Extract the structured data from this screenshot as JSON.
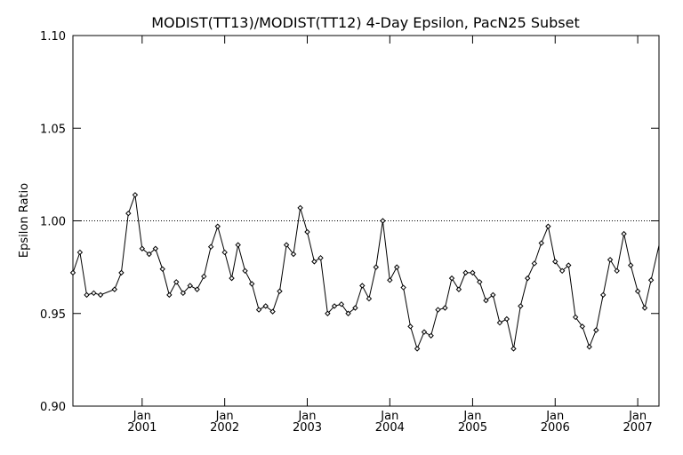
{
  "chart_data": {
    "type": "line",
    "title": "MODIST(TT13)/MODIST(TT12) 4-Day Epsilon, PacN25 Subset",
    "xlabel": "",
    "ylabel": "Epsilon Ratio",
    "ylim": [
      0.9,
      1.1
    ],
    "y_ticks": [
      "0.90",
      "0.95",
      "1.00",
      "1.05",
      "1.10"
    ],
    "xlim": [
      "2000-03-01",
      "2007-04-05"
    ],
    "x_ticks": [
      {
        "date": "2001-01-01",
        "top": "Jan",
        "bottom": "2001"
      },
      {
        "date": "2002-01-01",
        "top": "Jan",
        "bottom": "2002"
      },
      {
        "date": "2003-01-01",
        "top": "Jan",
        "bottom": "2003"
      },
      {
        "date": "2004-01-01",
        "top": "Jan",
        "bottom": "2004"
      },
      {
        "date": "2005-01-01",
        "top": "Jan",
        "bottom": "2005"
      },
      {
        "date": "2006-01-01",
        "top": "Jan",
        "bottom": "2006"
      },
      {
        "date": "2007-01-01",
        "top": "Jan",
        "bottom": "2007"
      }
    ],
    "reference_line": 1.0,
    "grid": false,
    "series": [
      {
        "marker": "diamond",
        "points": [
          [
            "2000-03-01",
            0.972
          ],
          [
            "2000-04-01",
            0.983
          ],
          [
            "2000-05-01",
            0.96
          ],
          [
            "2000-06-01",
            0.961
          ],
          [
            "2000-07-01",
            0.96
          ],
          [
            "2000-09-01",
            0.963
          ],
          [
            "2000-10-01",
            0.972
          ],
          [
            "2000-11-01",
            1.004
          ],
          [
            "2000-12-01",
            1.014
          ],
          [
            "2001-01-01",
            0.985
          ],
          [
            "2001-02-01",
            0.982
          ],
          [
            "2001-03-01",
            0.985
          ],
          [
            "2001-04-01",
            0.974
          ],
          [
            "2001-05-01",
            0.96
          ],
          [
            "2001-06-01",
            0.967
          ],
          [
            "2001-07-01",
            0.961
          ],
          [
            "2001-08-01",
            0.965
          ],
          [
            "2001-09-01",
            0.963
          ],
          [
            "2001-10-01",
            0.97
          ],
          [
            "2001-11-01",
            0.986
          ],
          [
            "2001-12-01",
            0.997
          ],
          [
            "2002-01-01",
            0.983
          ],
          [
            "2002-02-01",
            0.969
          ],
          [
            "2002-03-01",
            0.987
          ],
          [
            "2002-04-01",
            0.973
          ],
          [
            "2002-05-01",
            0.966
          ],
          [
            "2002-06-01",
            0.952
          ],
          [
            "2002-07-01",
            0.954
          ],
          [
            "2002-08-01",
            0.951
          ],
          [
            "2002-09-01",
            0.962
          ],
          [
            "2002-10-01",
            0.987
          ],
          [
            "2002-11-01",
            0.982
          ],
          [
            "2002-12-01",
            1.007
          ],
          [
            "2003-01-01",
            0.994
          ],
          [
            "2003-02-01",
            0.978
          ],
          [
            "2003-03-01",
            0.98
          ],
          [
            "2003-04-01",
            0.95
          ],
          [
            "2003-05-01",
            0.954
          ],
          [
            "2003-06-01",
            0.955
          ],
          [
            "2003-07-01",
            0.95
          ],
          [
            "2003-08-01",
            0.953
          ],
          [
            "2003-09-01",
            0.965
          ],
          [
            "2003-10-01",
            0.958
          ],
          [
            "2003-11-01",
            0.975
          ],
          [
            "2003-12-01",
            1.0
          ],
          [
            "2004-01-01",
            0.968
          ],
          [
            "2004-02-01",
            0.975
          ],
          [
            "2004-03-01",
            0.964
          ],
          [
            "2004-04-01",
            0.943
          ],
          [
            "2004-05-01",
            0.931
          ],
          [
            "2004-06-01",
            0.94
          ],
          [
            "2004-07-01",
            0.938
          ],
          [
            "2004-08-01",
            0.952
          ],
          [
            "2004-09-01",
            0.953
          ],
          [
            "2004-10-01",
            0.969
          ],
          [
            "2004-11-01",
            0.963
          ],
          [
            "2004-12-01",
            0.972
          ],
          [
            "2005-01-01",
            0.972
          ],
          [
            "2005-02-01",
            0.967
          ],
          [
            "2005-03-01",
            0.957
          ],
          [
            "2005-04-01",
            0.96
          ],
          [
            "2005-05-01",
            0.945
          ],
          [
            "2005-06-01",
            0.947
          ],
          [
            "2005-07-01",
            0.931
          ],
          [
            "2005-08-01",
            0.954
          ],
          [
            "2005-09-01",
            0.969
          ],
          [
            "2005-10-01",
            0.977
          ],
          [
            "2005-11-01",
            0.988
          ],
          [
            "2005-12-01",
            0.997
          ],
          [
            "2006-01-01",
            0.978
          ],
          [
            "2006-02-01",
            0.973
          ],
          [
            "2006-03-01",
            0.976
          ],
          [
            "2006-04-01",
            0.948
          ],
          [
            "2006-05-01",
            0.943
          ],
          [
            "2006-06-01",
            0.932
          ],
          [
            "2006-07-01",
            0.941
          ],
          [
            "2006-08-01",
            0.96
          ],
          [
            "2006-09-01",
            0.979
          ],
          [
            "2006-10-01",
            0.973
          ],
          [
            "2006-11-01",
            0.993
          ],
          [
            "2006-12-01",
            0.976
          ],
          [
            "2007-01-01",
            0.962
          ],
          [
            "2007-02-01",
            0.953
          ],
          [
            "2007-03-01",
            0.968
          ]
        ]
      }
    ]
  }
}
